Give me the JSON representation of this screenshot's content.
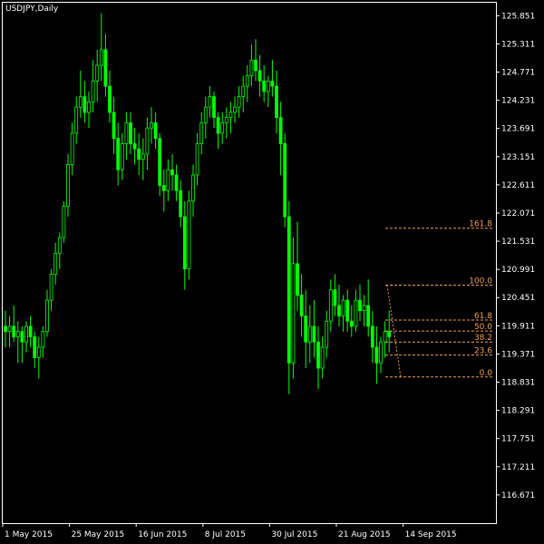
{
  "chart_title": "USDJPY,Daily",
  "colors": {
    "background": "#000000",
    "candles": "#00ff00",
    "axis": "#ffffff",
    "fib_lines": "#f0a050",
    "fib_anchor_line": "#f0a050"
  },
  "chart_data": {
    "type": "candlestick",
    "title": "USDJPY,Daily",
    "ylim": [
      116.13,
      126.1
    ],
    "y_ticks": [
      "125.851",
      "125.311",
      "124.771",
      "124.231",
      "123.691",
      "123.151",
      "122.611",
      "122.071",
      "121.531",
      "120.991",
      "120.451",
      "119.911",
      "119.371",
      "118.831",
      "118.291",
      "117.751",
      "117.211",
      "116.671"
    ],
    "x_ticks": [
      {
        "label": "1 May 2015",
        "index": 0
      },
      {
        "label": "25 May 2015",
        "index": 16
      },
      {
        "label": "16 Jun 2015",
        "index": 32
      },
      {
        "label": "8 Jul 2015",
        "index": 48
      },
      {
        "label": "30 Jul 2015",
        "index": 64
      },
      {
        "label": "21 Aug 2015",
        "index": 80
      },
      {
        "label": "14 Sep 2015",
        "index": 96
      }
    ],
    "ohlc": [
      [
        119.9,
        120.2,
        119.5,
        119.8
      ],
      [
        119.8,
        120.1,
        119.5,
        119.9
      ],
      [
        119.9,
        120.3,
        119.6,
        119.7
      ],
      [
        119.7,
        120.0,
        119.2,
        119.8
      ],
      [
        119.8,
        119.9,
        119.2,
        119.6
      ],
      [
        119.6,
        120.0,
        119.4,
        119.9
      ],
      [
        119.9,
        120.1,
        119.5,
        119.7
      ],
      [
        119.7,
        119.8,
        119.1,
        119.3
      ],
      [
        119.3,
        119.7,
        118.9,
        119.5
      ],
      [
        119.5,
        119.9,
        119.3,
        119.8
      ],
      [
        119.8,
        120.6,
        119.7,
        120.4
      ],
      [
        120.4,
        121.0,
        120.2,
        120.9
      ],
      [
        120.9,
        121.5,
        120.7,
        121.3
      ],
      [
        121.3,
        121.7,
        121.0,
        121.6
      ],
      [
        121.6,
        122.3,
        121.5,
        122.2
      ],
      [
        122.2,
        123.2,
        122.0,
        123.0
      ],
      [
        123.0,
        123.8,
        122.8,
        123.6
      ],
      [
        123.6,
        124.3,
        123.4,
        124.1
      ],
      [
        124.1,
        124.8,
        123.9,
        124.3
      ],
      [
        124.3,
        124.6,
        123.8,
        124.0
      ],
      [
        124.0,
        124.4,
        123.7,
        124.2
      ],
      [
        124.2,
        125.0,
        124.0,
        124.6
      ],
      [
        124.6,
        125.2,
        124.2,
        124.9
      ],
      [
        124.9,
        125.9,
        124.6,
        125.2
      ],
      [
        125.2,
        125.5,
        124.3,
        124.5
      ],
      [
        124.5,
        124.8,
        123.8,
        124.0
      ],
      [
        124.0,
        124.3,
        123.2,
        123.5
      ],
      [
        123.5,
        123.8,
        122.6,
        122.9
      ],
      [
        122.9,
        123.6,
        122.7,
        123.4
      ],
      [
        123.4,
        124.0,
        123.1,
        123.8
      ],
      [
        123.8,
        124.0,
        123.2,
        123.4
      ],
      [
        123.4,
        123.7,
        123.0,
        123.3
      ],
      [
        123.3,
        123.6,
        122.8,
        123.1
      ],
      [
        123.1,
        123.5,
        122.7,
        123.2
      ],
      [
        123.2,
        123.9,
        122.9,
        123.7
      ],
      [
        123.7,
        124.1,
        123.4,
        123.8
      ],
      [
        123.8,
        124.0,
        123.3,
        123.5
      ],
      [
        123.5,
        123.6,
        122.4,
        122.6
      ],
      [
        122.6,
        122.9,
        122.1,
        122.5
      ],
      [
        122.5,
        123.1,
        122.3,
        122.9
      ],
      [
        122.9,
        123.2,
        122.5,
        122.8
      ],
      [
        122.8,
        123.0,
        122.3,
        122.5
      ],
      [
        122.5,
        122.7,
        121.8,
        122.0
      ],
      [
        122.0,
        122.3,
        120.6,
        121.0
      ],
      [
        121.0,
        122.5,
        120.8,
        122.3
      ],
      [
        122.3,
        123.0,
        122.0,
        122.8
      ],
      [
        122.8,
        123.6,
        122.6,
        123.4
      ],
      [
        123.4,
        124.0,
        123.2,
        123.8
      ],
      [
        123.8,
        124.3,
        123.5,
        124.1
      ],
      [
        124.1,
        124.5,
        123.9,
        124.3
      ],
      [
        124.3,
        124.4,
        123.7,
        123.9
      ],
      [
        123.9,
        124.0,
        123.3,
        123.6
      ],
      [
        123.6,
        124.0,
        123.4,
        123.8
      ],
      [
        123.8,
        124.1,
        123.5,
        123.9
      ],
      [
        123.9,
        124.2,
        123.6,
        124.0
      ],
      [
        124.0,
        124.3,
        123.8,
        124.1
      ],
      [
        124.1,
        124.5,
        123.9,
        124.3
      ],
      [
        124.3,
        124.7,
        124.0,
        124.5
      ],
      [
        124.5,
        124.9,
        124.2,
        124.7
      ],
      [
        124.7,
        125.3,
        124.5,
        125.0
      ],
      [
        125.0,
        125.4,
        124.6,
        124.8
      ],
      [
        124.8,
        125.1,
        124.3,
        124.6
      ],
      [
        124.6,
        124.9,
        124.2,
        124.4
      ],
      [
        124.4,
        124.7,
        124.1,
        124.6
      ],
      [
        124.6,
        125.0,
        124.3,
        124.5
      ],
      [
        124.5,
        124.8,
        123.6,
        123.9
      ],
      [
        123.9,
        124.2,
        122.8,
        123.4
      ],
      [
        123.4,
        123.6,
        121.8,
        122.0
      ],
      [
        122.0,
        122.3,
        118.6,
        119.2
      ],
      [
        119.2,
        121.6,
        118.9,
        121.1
      ],
      [
        121.1,
        121.9,
        120.2,
        120.5
      ],
      [
        120.5,
        120.9,
        119.7,
        120.1
      ],
      [
        120.1,
        120.6,
        119.1,
        119.6
      ],
      [
        119.6,
        120.3,
        119.2,
        119.9
      ],
      [
        119.9,
        120.4,
        119.3,
        119.6
      ],
      [
        119.6,
        119.9,
        118.7,
        119.1
      ],
      [
        119.1,
        119.7,
        118.9,
        119.5
      ],
      [
        119.5,
        120.2,
        119.3,
        120.0
      ],
      [
        120.0,
        120.8,
        119.8,
        120.6
      ],
      [
        120.6,
        120.9,
        120.1,
        120.3
      ],
      [
        120.3,
        120.7,
        119.9,
        120.1
      ],
      [
        120.1,
        120.5,
        119.8,
        120.4
      ],
      [
        120.4,
        120.6,
        119.8,
        120.0
      ],
      [
        120.0,
        120.3,
        119.7,
        119.9
      ],
      [
        119.9,
        120.6,
        119.8,
        120.4
      ],
      [
        120.4,
        120.7,
        120.0,
        120.2
      ],
      [
        120.2,
        120.5,
        119.9,
        120.3
      ],
      [
        120.3,
        120.8,
        119.7,
        119.9
      ],
      [
        119.9,
        120.2,
        119.2,
        119.5
      ],
      [
        119.5,
        119.9,
        118.8,
        119.2
      ],
      [
        119.2,
        119.7,
        119.0,
        119.6
      ],
      [
        119.6,
        120.0,
        119.3,
        119.8
      ],
      [
        119.8,
        120.2,
        119.4,
        119.7
      ]
    ],
    "fibonacci": {
      "levels": [
        {
          "label": "161.8",
          "value": 121.78
        },
        {
          "label": "100.0",
          "value": 120.69
        },
        {
          "label": "61.8",
          "value": 120.02
        },
        {
          "label": "50.0",
          "value": 119.81
        },
        {
          "label": "38.2",
          "value": 119.6
        },
        {
          "label": "23.6",
          "value": 119.35
        },
        {
          "label": "0.0",
          "value": 118.93
        }
      ]
    }
  }
}
